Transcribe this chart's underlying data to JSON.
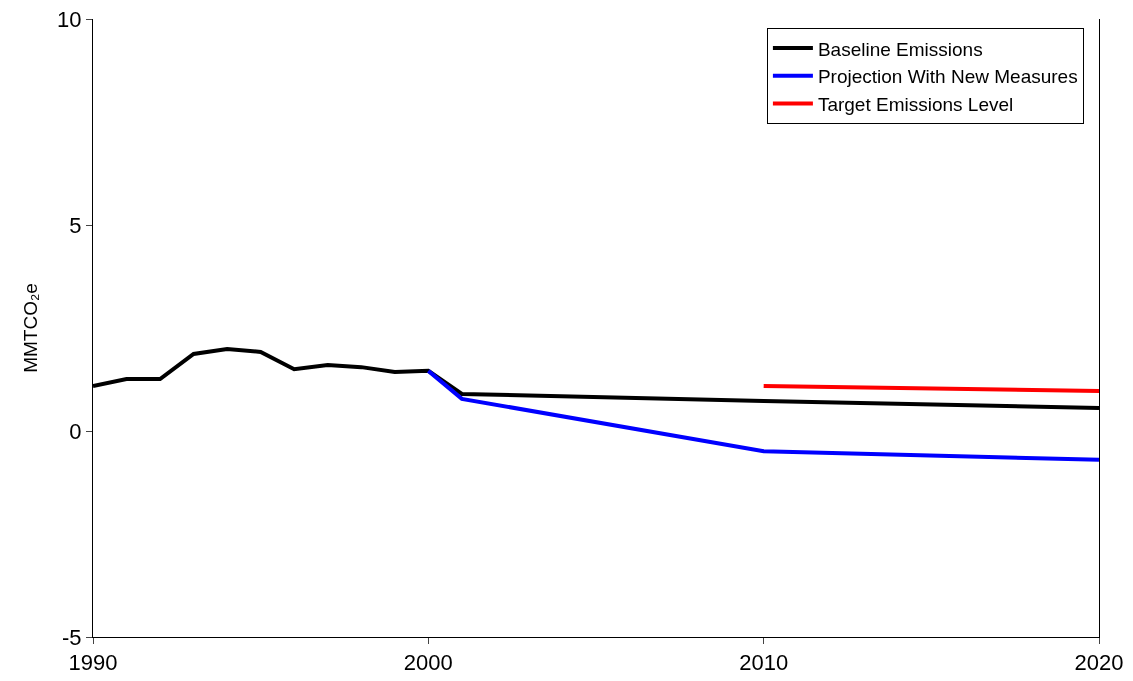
{
  "chart_data": {
    "type": "line",
    "ylabel": "MMTCO₂e",
    "xlim": [
      1990,
      2020
    ],
    "xticks": [
      1990,
      2000,
      2010,
      2020
    ],
    "ylim": [
      -5,
      10
    ],
    "yticks": [
      -5,
      0,
      5,
      10
    ],
    "grid": false,
    "legend": "top right",
    "marker": "none",
    "line_style": "solid",
    "series": [
      {
        "name": "Baseline Emissions",
        "color": "#000000",
        "x": [
          1990,
          1991,
          1992,
          1993,
          1994,
          1995,
          1996,
          1997,
          1998,
          1999,
          2000,
          2001,
          2010,
          2020
        ],
        "values": [
          1.09,
          1.26,
          1.26,
          1.87,
          1.99,
          1.92,
          1.5,
          1.6,
          1.55,
          1.43,
          1.46,
          0.9,
          0.73,
          0.56
        ]
      },
      {
        "name": "Projection With New Measures",
        "color": "#0000ff",
        "x": [
          2000,
          2001,
          2010,
          2020
        ],
        "values": [
          1.46,
          0.78,
          -0.49,
          -0.7
        ]
      },
      {
        "name": "Target Emissions Level",
        "color": "#ff0000",
        "x": [
          2010,
          2020
        ],
        "values": [
          1.09,
          0.97
        ]
      }
    ]
  }
}
